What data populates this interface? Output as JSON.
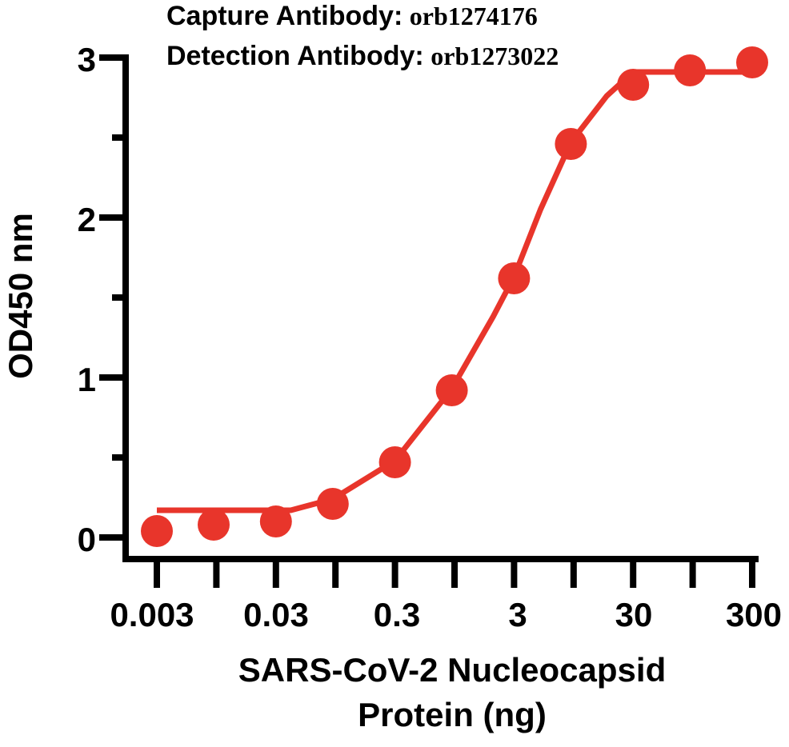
{
  "chart_data": {
    "type": "line",
    "title_lines": [
      {
        "label": "Capture Antibody:",
        "value": "orb1274176"
      },
      {
        "label": "Detection Antibody:",
        "value": "orb1273022"
      }
    ],
    "xlabel_lines": [
      "SARS-CoV-2 Nucleocapsid",
      "Protein (ng)"
    ],
    "ylabel": "OD450 nm",
    "x_scale": "log",
    "x_ticks": [
      0.003,
      0.03,
      0.3,
      3,
      30,
      300
    ],
    "x_tick_labels": [
      "0.003",
      "0.03",
      "0.3",
      "3",
      "30",
      "300"
    ],
    "y_ticks": [
      0,
      1,
      2,
      3
    ],
    "y_tick_labels": [
      "0",
      "1",
      "2",
      "3"
    ],
    "ylim": [
      0,
      3
    ],
    "grid": false,
    "series": [
      {
        "color": "#e8352b",
        "points": [
          {
            "x": 0.003,
            "y": 0.04
          },
          {
            "x": 0.009,
            "y": 0.08
          },
          {
            "x": 0.03,
            "y": 0.1
          },
          {
            "x": 0.09,
            "y": 0.21
          },
          {
            "x": 0.3,
            "y": 0.47
          },
          {
            "x": 0.9,
            "y": 0.92
          },
          {
            "x": 3,
            "y": 1.62
          },
          {
            "x": 9,
            "y": 2.46
          },
          {
            "x": 30,
            "y": 2.83
          },
          {
            "x": 90,
            "y": 2.92
          },
          {
            "x": 300,
            "y": 2.97
          }
        ],
        "fit_curve": [
          {
            "x": 0.003,
            "y": 0.17
          },
          {
            "x": 0.04,
            "y": 0.17
          },
          {
            "x": 0.09,
            "y": 0.24
          },
          {
            "x": 0.3,
            "y": 0.48
          },
          {
            "x": 0.9,
            "y": 0.93
          },
          {
            "x": 2,
            "y": 1.38
          },
          {
            "x": 3,
            "y": 1.63
          },
          {
            "x": 5,
            "y": 2.05
          },
          {
            "x": 9,
            "y": 2.47
          },
          {
            "x": 18,
            "y": 2.76
          },
          {
            "x": 30,
            "y": 2.91
          },
          {
            "x": 300,
            "y": 2.91
          }
        ]
      }
    ]
  }
}
